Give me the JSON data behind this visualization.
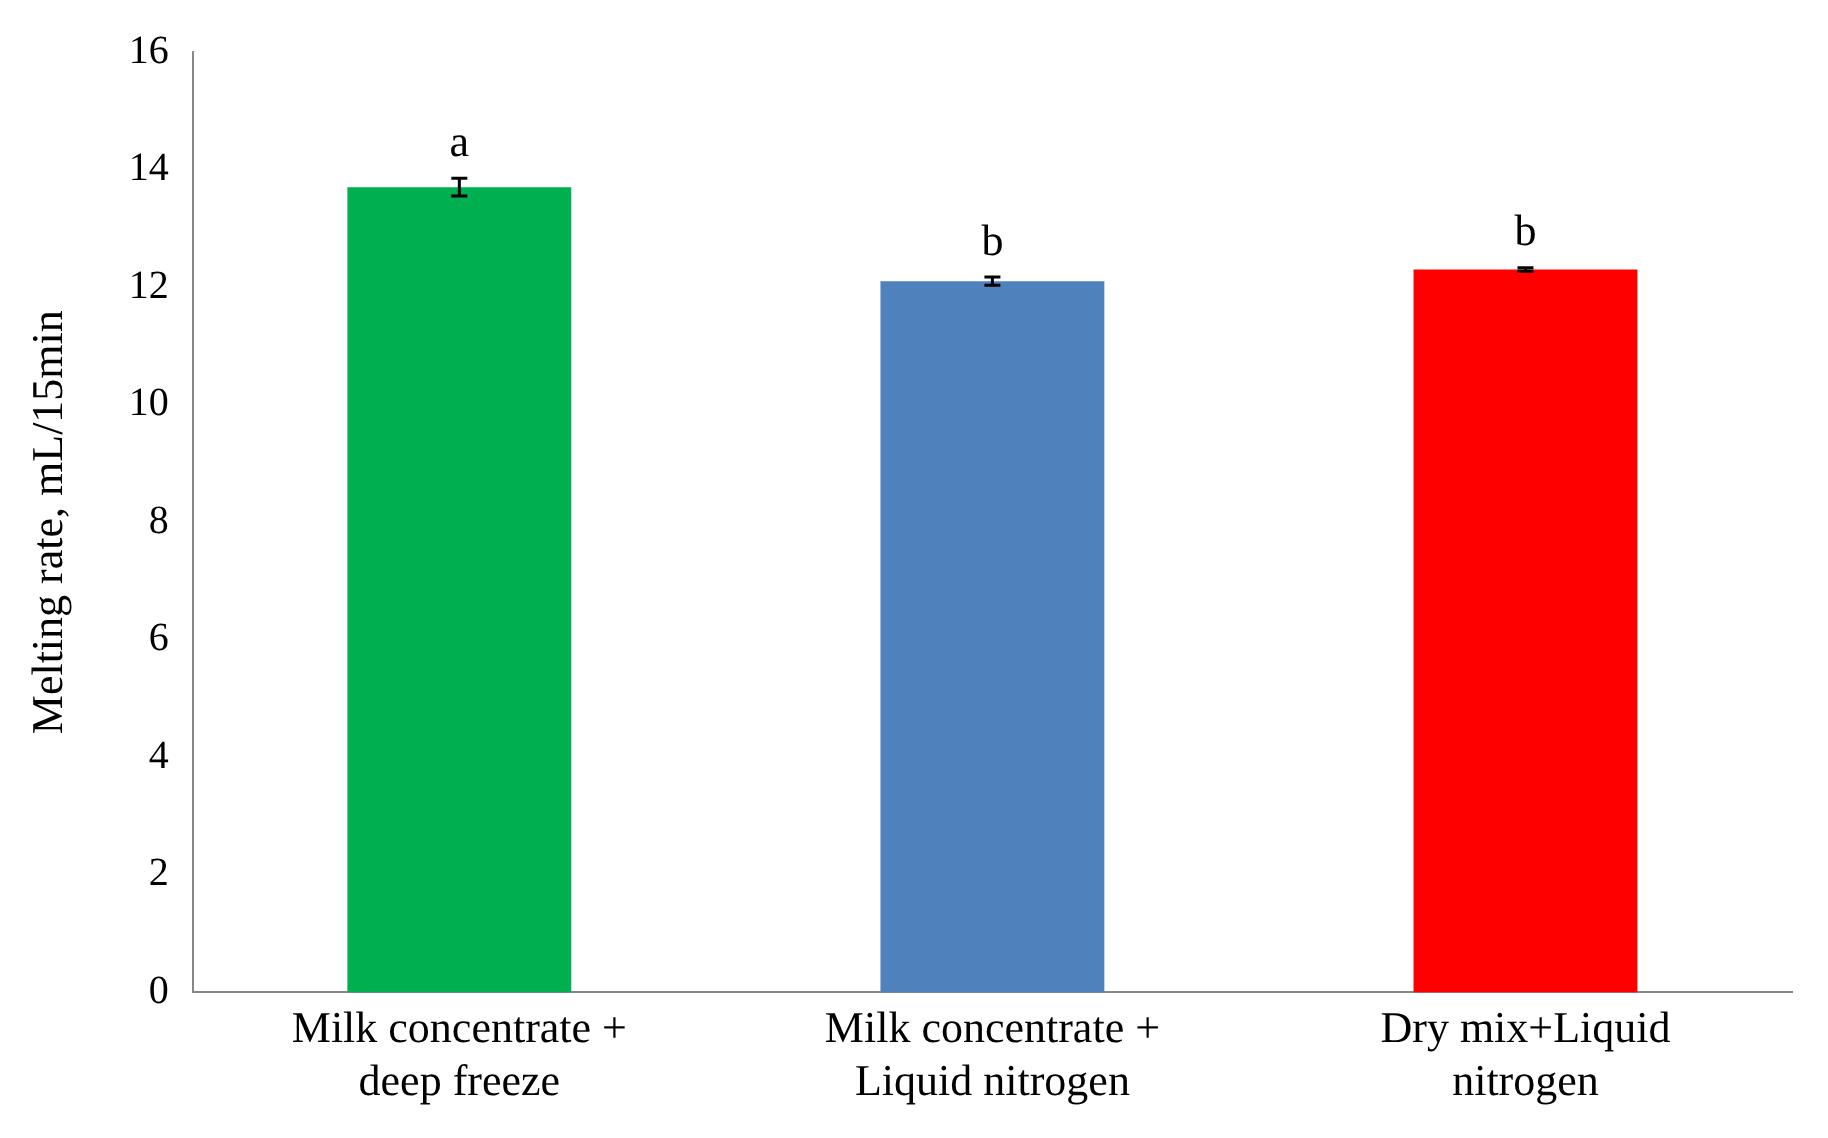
{
  "chart_data": {
    "type": "bar",
    "ylabel": "Melting rate, mL/15min",
    "categories": [
      "Milk concentrate + deep freeze",
      "Milk concentrate + Liquid nitrogen",
      "Dry mix+Liquid nitrogen"
    ],
    "values": [
      13.7,
      12.1,
      12.3
    ],
    "errors": [
      0.15,
      0.07,
      0.03
    ],
    "colors": [
      "#00b050",
      "#4f81bd",
      "#ff0000"
    ],
    "ylim": [
      0,
      16
    ],
    "yticks": [
      0,
      2,
      4,
      6,
      8,
      10,
      12,
      14,
      16
    ],
    "grid": false,
    "legend": false,
    "annotations": [
      {
        "text": "a",
        "x": "Milk concentrate + deep freeze",
        "y": 13.7
      },
      {
        "text": "b",
        "x": "Milk concentrate + Liquid nitrogen",
        "y": 12.1
      },
      {
        "text": "b",
        "x": "Dry mix+Liquid nitrogen",
        "y": 12.3
      }
    ]
  }
}
